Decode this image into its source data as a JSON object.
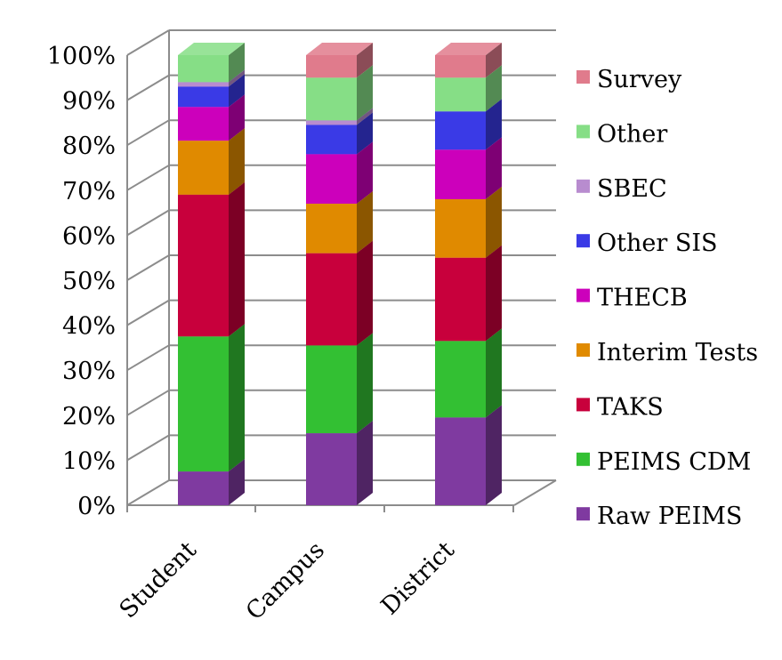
{
  "chart_data": {
    "type": "bar",
    "stacked": true,
    "percent_stacked": true,
    "three_d": true,
    "categories": [
      "Student",
      "Campus",
      "District"
    ],
    "y_ticks": [
      "0%",
      "10%",
      "20%",
      "30%",
      "40%",
      "50%",
      "60%",
      "70%",
      "80%",
      "90%",
      "100%"
    ],
    "ylim": [
      0,
      100
    ],
    "grid": true,
    "legend_position": "right",
    "series": [
      {
        "name": "Raw PEIMS",
        "color": "#7F3AA0",
        "values": [
          7.5,
          16,
          19.5
        ]
      },
      {
        "name": "PEIMS CDM",
        "color": "#33C033",
        "values": [
          30,
          19.5,
          17
        ]
      },
      {
        "name": "TAKS",
        "color": "#C8003C",
        "values": [
          31.5,
          20.5,
          18.5
        ]
      },
      {
        "name": "Interim Tests",
        "color": "#E08A00",
        "values": [
          12,
          11,
          13
        ]
      },
      {
        "name": "THECB",
        "color": "#CC00BB",
        "values": [
          7.5,
          11,
          11
        ]
      },
      {
        "name": "Other SIS",
        "color": "#3A3AE6",
        "values": [
          4.5,
          6.5,
          8.5
        ]
      },
      {
        "name": "SBEC",
        "color": "#B88CCF",
        "values": [
          1,
          1,
          0
        ]
      },
      {
        "name": "Other",
        "color": "#86DE86",
        "values": [
          6,
          9.5,
          7.5
        ]
      },
      {
        "name": "Survey",
        "color": "#E07B8C",
        "values": [
          0,
          5,
          5
        ]
      }
    ]
  }
}
